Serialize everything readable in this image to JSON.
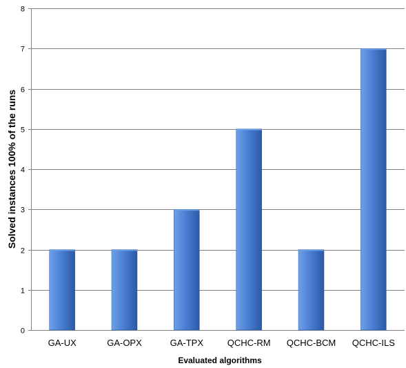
{
  "chart_data": {
    "type": "bar",
    "title": "",
    "xlabel": "Evaluated algorithms",
    "ylabel": "Solved instances 100% of the runs",
    "categories": [
      "GA-UX",
      "GA-OPX",
      "GA-TPX",
      "QCHC-RM",
      "QCHC-BCM",
      "QCHC-ILS"
    ],
    "values": [
      2,
      2,
      3,
      5,
      2,
      7
    ],
    "ylim": [
      0,
      8
    ],
    "yticks": [
      "0",
      "1",
      "2",
      "3",
      "4",
      "5",
      "6",
      "7",
      "8"
    ],
    "grid": true,
    "legend": "none",
    "colors": {
      "bar_light": "#6fa0e6",
      "bar_mid": "#4a7fd3",
      "bar_dark": "#2a5aa6",
      "gridline": "#808080",
      "axis": "#808080"
    }
  }
}
